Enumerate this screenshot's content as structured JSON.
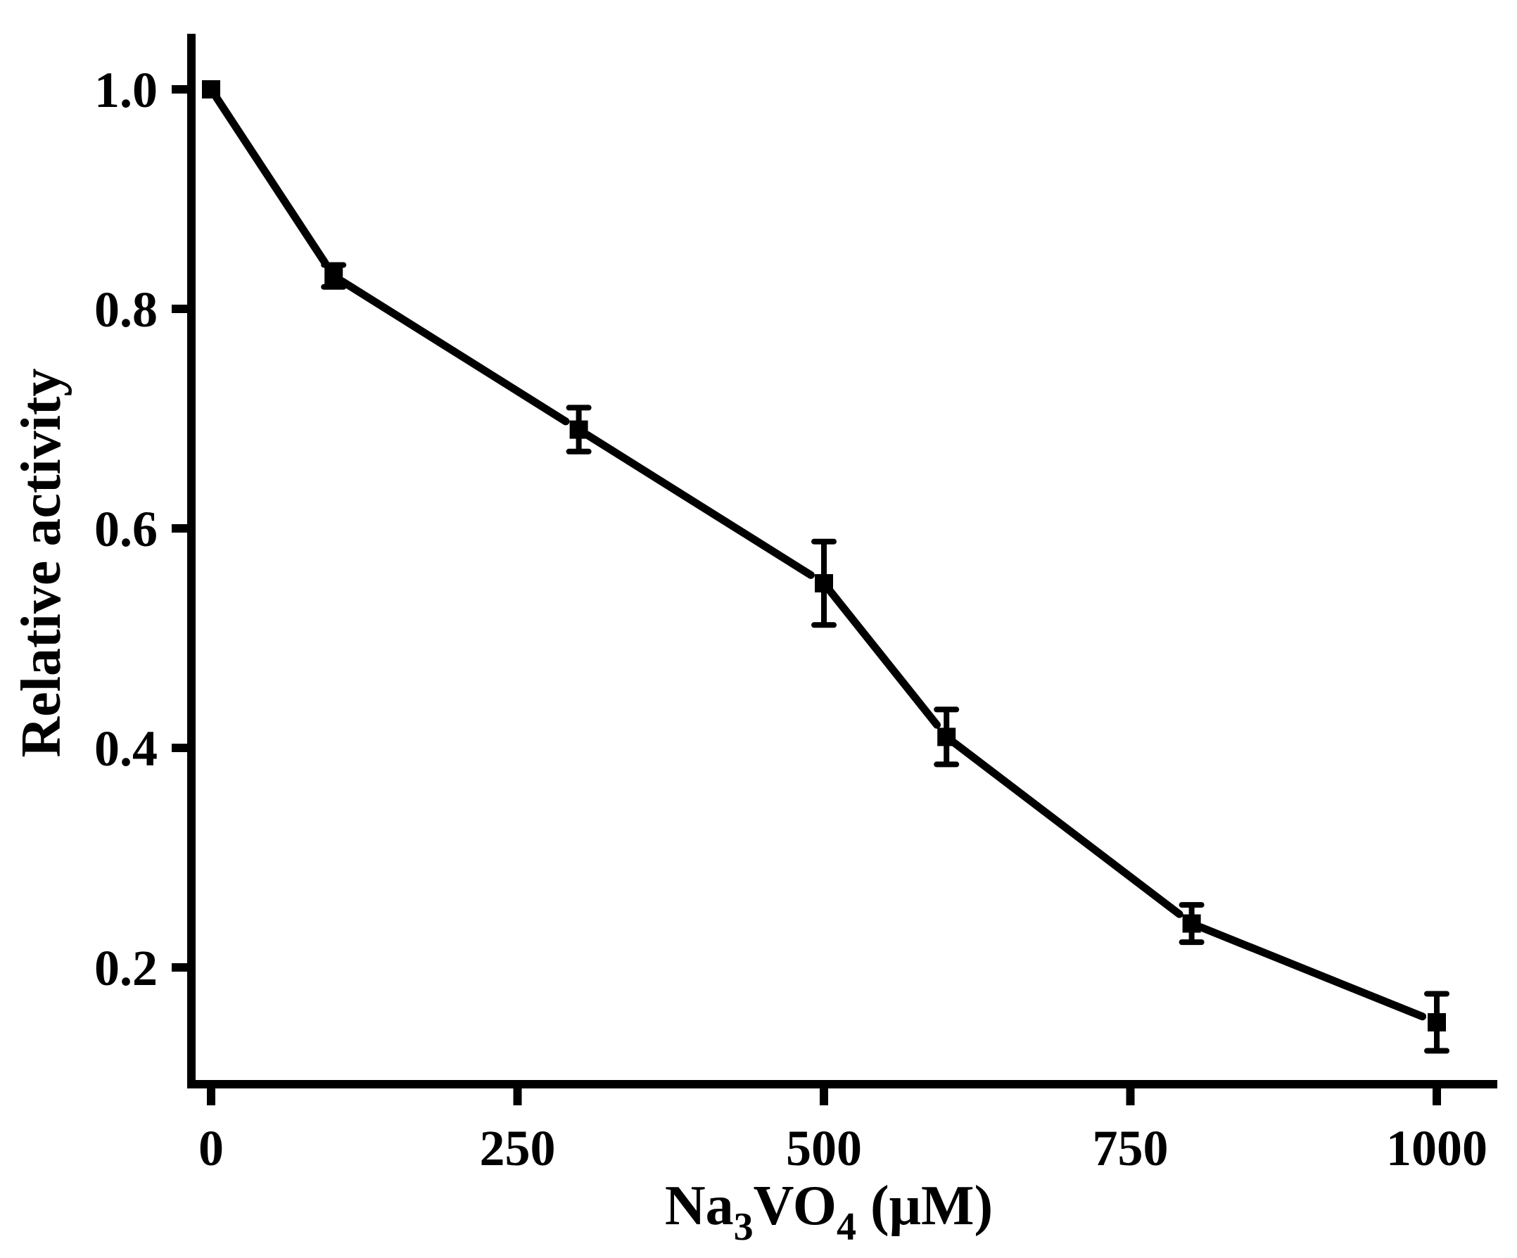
{
  "chart_data": {
    "type": "line",
    "xlabel": {
      "main": "Na",
      "sub1": "3",
      "mid": "VO",
      "sub2": "4",
      "tail": " (μM)"
    },
    "ylabel": "Relative activity",
    "xlim": [
      -40,
      1040
    ],
    "ylim": [
      0.1,
      1.05
    ],
    "x_ticks": [
      0,
      250,
      500,
      750,
      1000
    ],
    "y_ticks": [
      0.2,
      0.4,
      0.6,
      0.8,
      1.0
    ],
    "y_tick_labels": [
      "0.2",
      "0.4",
      "0.6",
      "0.8",
      "1.0"
    ],
    "grid": false,
    "series": [
      {
        "color": "#000000",
        "marker": "square",
        "points": [
          {
            "x": 0,
            "y": 1.0,
            "err": 0.0
          },
          {
            "x": 100,
            "y": 0.83,
            "err": 0.01
          },
          {
            "x": 300,
            "y": 0.69,
            "err": 0.02
          },
          {
            "x": 500,
            "y": 0.55,
            "err": 0.038
          },
          {
            "x": 600,
            "y": 0.41,
            "err": 0.025
          },
          {
            "x": 800,
            "y": 0.24,
            "err": 0.017
          },
          {
            "x": 1000,
            "y": 0.15,
            "err": 0.026
          }
        ]
      }
    ]
  }
}
